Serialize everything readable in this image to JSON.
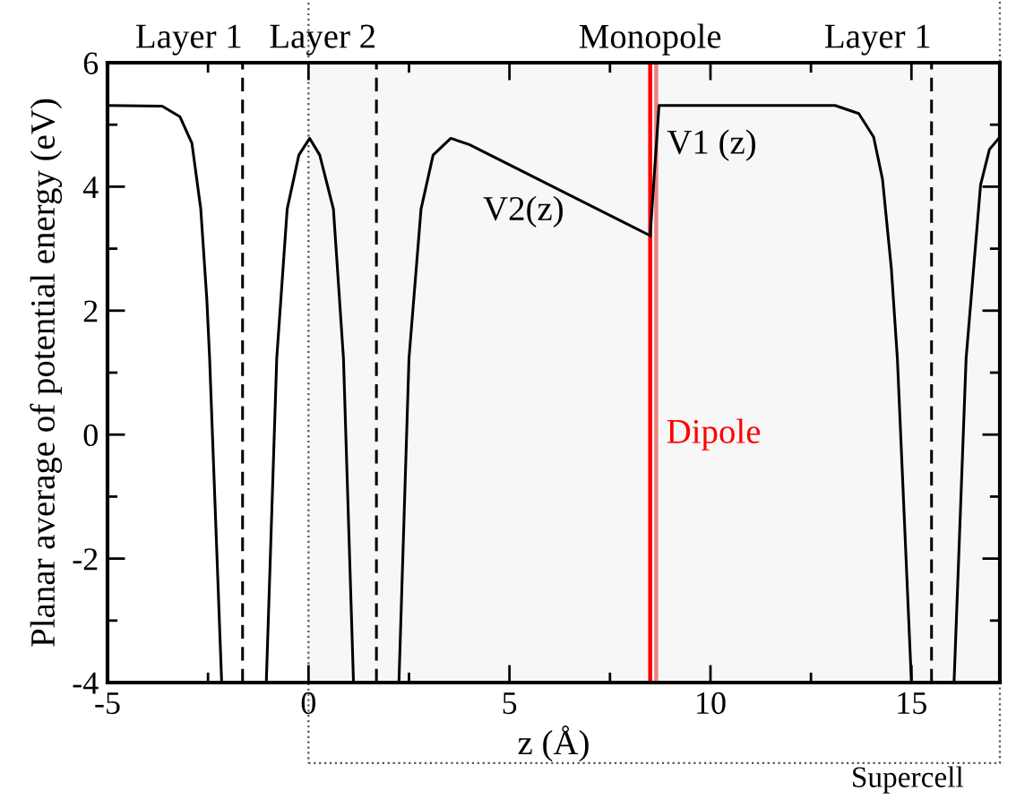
{
  "chart_data": {
    "type": "line",
    "xlabel": "z (Å)",
    "ylabel": "Planar average of potential energy (eV)",
    "series": [
      {
        "color": "#000000",
        "x": [
          -5,
          -3.64,
          -3.2,
          -2.9,
          -2.68,
          -2.53,
          -2.46,
          -2.16
        ],
        "values": [
          5.31,
          5.3,
          5.13,
          4.7,
          3.64,
          2.19,
          1.23,
          -4
        ]
      },
      {
        "color": "#000000",
        "x": [
          -1.05,
          -0.79,
          -0.53,
          -0.24,
          0.03,
          0.28,
          0.62,
          0.87,
          1.12
        ],
        "values": [
          -4,
          1.23,
          3.64,
          4.51,
          4.78,
          4.51,
          3.64,
          1.23,
          -4
        ]
      },
      {
        "name": "V2(z)",
        "color": "#000000",
        "x": [
          2.25,
          2.5,
          2.8,
          3.1,
          3.54,
          4.0,
          8.5
        ],
        "values": [
          -4,
          1.23,
          3.64,
          4.51,
          4.78,
          4.68,
          3.21
        ]
      },
      {
        "name": "V1 (z)",
        "color": "#000000",
        "x": [
          8.5,
          8.72,
          13.1,
          13.69,
          14.06,
          14.28,
          14.5,
          14.65,
          15.0
        ],
        "values": [
          3.21,
          5.31,
          5.31,
          5.18,
          4.8,
          4.12,
          2.68,
          1.23,
          -4
        ]
      },
      {
        "color": "#000000",
        "x": [
          16.06,
          16.36,
          16.72,
          16.94,
          17.16
        ],
        "values": [
          -4,
          1.23,
          4.03,
          4.6,
          4.77
        ]
      }
    ],
    "xlim": [
      -5,
      17.2
    ],
    "ylim": [
      -4,
      6
    ],
    "xticks": [
      -5,
      {
        "value": -2.5,
        "label": null
      },
      0,
      {
        "value": 2.5,
        "label": null
      },
      5,
      {
        "value": 7.5,
        "label": null
      },
      10,
      {
        "value": 12.5,
        "label": null
      },
      15
    ],
    "yticks": [
      -4,
      {
        "value": -3,
        "label": null
      },
      -2,
      {
        "value": -1,
        "label": null
      },
      0,
      {
        "value": 1,
        "label": null
      },
      2,
      {
        "value": 3,
        "label": null
      },
      4,
      {
        "value": 5,
        "label": null
      },
      6
    ],
    "ref_lines": [
      {
        "axis": "x",
        "value": -1.64,
        "label": "Layer 1",
        "line_style": "dashed",
        "color": "#000000"
      },
      {
        "axis": "x",
        "value": 1.69,
        "label": "Layer 2",
        "line_style": "dashed",
        "color": "#000000"
      },
      {
        "axis": "x",
        "value": 15.5,
        "label": "Layer 1",
        "line_style": "dashed",
        "color": "#000000"
      },
      {
        "axis": "x",
        "value": 8.5,
        "label": "Monopole",
        "color": "#ff0000"
      },
      {
        "axis": "x",
        "value": 8.65,
        "color": "#f08080"
      }
    ],
    "bands": [
      {
        "axis": "x",
        "from": 0,
        "to": 17.2,
        "label": "Supercell",
        "color": "#f7f7f7"
      }
    ],
    "annotations": [
      "Dipole"
    ],
    "legend": false,
    "line_style": "solid"
  }
}
